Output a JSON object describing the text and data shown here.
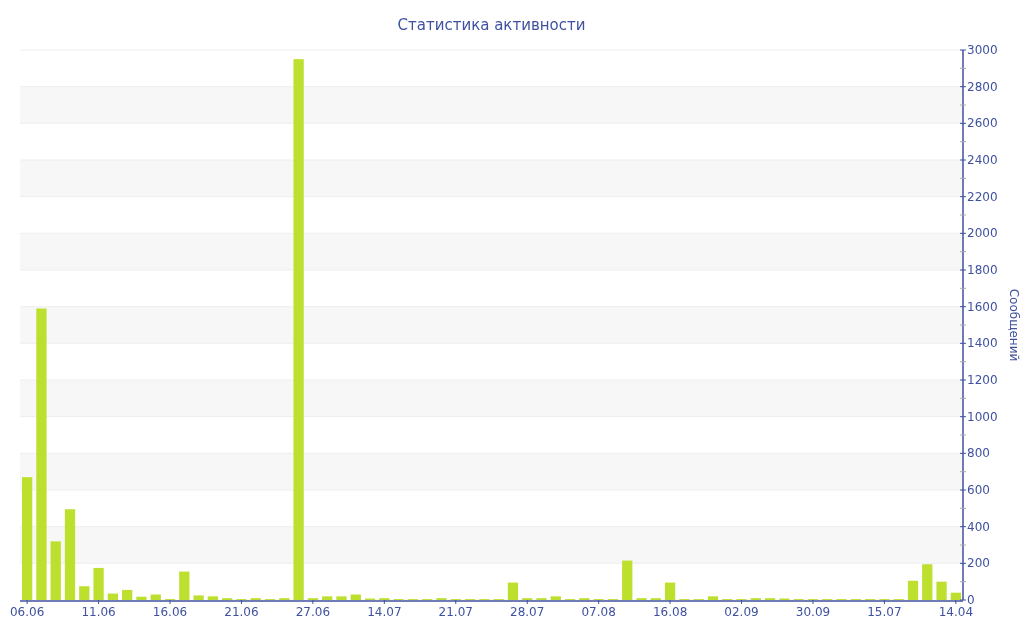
{
  "chart_data": {
    "type": "bar",
    "title": "Статистика активности",
    "ylabel": "Сообщений",
    "categories": [
      "06.06",
      null,
      null,
      null,
      null,
      "11.06",
      null,
      null,
      null,
      null,
      "16.06",
      null,
      null,
      null,
      null,
      "21.06",
      null,
      null,
      null,
      null,
      "27.06",
      null,
      null,
      null,
      null,
      "14.07",
      null,
      null,
      null,
      null,
      "21.07",
      null,
      null,
      null,
      null,
      "28.07",
      null,
      null,
      null,
      null,
      "07.08",
      null,
      null,
      null,
      null,
      "16.08",
      null,
      null,
      null,
      null,
      "02.09",
      null,
      null,
      null,
      null,
      "30.09",
      null,
      null,
      null,
      null,
      "15.07",
      null,
      null,
      null,
      null,
      "14.04"
    ],
    "values": [
      670,
      1590,
      320,
      495,
      75,
      175,
      35,
      55,
      18,
      30,
      5,
      155,
      25,
      20,
      10,
      5,
      10,
      5,
      10,
      2950,
      10,
      20,
      20,
      30,
      8,
      10,
      5,
      5,
      5,
      10,
      5,
      5,
      5,
      5,
      95,
      10,
      10,
      20,
      5,
      10,
      5,
      5,
      215,
      10,
      10,
      95,
      5,
      5,
      20,
      5,
      5,
      10,
      10,
      8,
      5,
      5,
      5,
      5,
      5,
      5,
      5,
      5,
      105,
      195,
      100,
      40
    ],
    "color": "#bde02f",
    "ylim": [
      0,
      3000
    ],
    "yticks": [
      0,
      {
        "value": 100,
        "label": null
      },
      200,
      {
        "value": 300,
        "label": null
      },
      400,
      {
        "value": 500,
        "label": null
      },
      600,
      {
        "value": 700,
        "label": null
      },
      800,
      {
        "value": 900,
        "label": null
      },
      1000,
      {
        "value": 1100,
        "label": null
      },
      1200,
      {
        "value": 1300,
        "label": null
      },
      1400,
      {
        "value": 1500,
        "label": null
      },
      1600,
      {
        "value": 1700,
        "label": null
      },
      1800,
      {
        "value": 1900,
        "label": null
      },
      2000,
      {
        "value": 2100,
        "label": null
      },
      2200,
      {
        "value": 2300,
        "label": null
      },
      2400,
      {
        "value": 2500,
        "label": null
      },
      2600,
      {
        "value": 2700,
        "label": null
      },
      2800,
      {
        "value": 2900,
        "label": null
      },
      3000
    ],
    "grid": "y"
  }
}
